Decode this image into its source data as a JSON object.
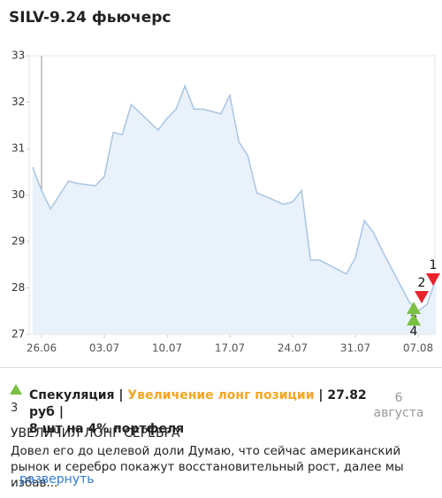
{
  "chart_data": {
    "type": "line",
    "title": "SILV-9.24 фьючерс",
    "x": [
      "25.06",
      "26.06",
      "27.06",
      "28.06",
      "29.06",
      "30.06",
      "02.07",
      "03.07",
      "04.07",
      "05.07",
      "06.07",
      "09.07",
      "10.07",
      "11.07",
      "12.07",
      "13.07",
      "14.07",
      "16.07",
      "17.07",
      "18.07",
      "19.07",
      "20.07",
      "23.07",
      "24.07",
      "25.07",
      "26.07",
      "27.07",
      "30.07",
      "31.07",
      "01.08",
      "02.08",
      "03.08",
      "06.08",
      "07.08",
      "08.08",
      "09.08"
    ],
    "values": [
      30.6,
      30.1,
      29.7,
      30.0,
      30.3,
      30.25,
      30.2,
      30.4,
      31.35,
      31.3,
      31.95,
      31.4,
      31.65,
      31.85,
      32.35,
      31.85,
      31.85,
      31.75,
      32.15,
      31.15,
      30.85,
      30.05,
      29.8,
      29.85,
      30.1,
      28.6,
      28.6,
      28.3,
      28.65,
      29.45,
      29.2,
      28.8,
      27.7,
      27.5,
      27.65,
      28.2
    ],
    "color": "#a9c5e2",
    "fill": "#e9f1fa",
    "ylim": [
      27,
      33
    ],
    "yticks": [
      27,
      28,
      29,
      30,
      31,
      32,
      33
    ],
    "xticks": [
      "26.06",
      "03.07",
      "10.07",
      "17.07",
      "24.07",
      "31.07",
      "07.08"
    ],
    "markers": [
      {
        "label": "1",
        "color": "#e8232a"
      },
      {
        "label": "2",
        "color": "#e8232a"
      },
      {
        "label": "3",
        "color": "#7ac143"
      },
      {
        "label": "4",
        "color": "#7ac143"
      }
    ]
  },
  "post": {
    "icon_label": "3",
    "type": "Спекуляция",
    "separator": "|",
    "action": "Увеличение лонг позиции",
    "price": "27.82 руб",
    "amount": "8 шт на 4% портфеля",
    "day": "6",
    "month": "августа",
    "headline": "УВЕЛИЧИЛ ЛОНГ СЕРЕБРА",
    "text": "Довел его до целевой доли Думаю, что сейчас американский рынок и серебро покажут восстановительный рост, далее мы избав...",
    "expand": "развернуть"
  }
}
